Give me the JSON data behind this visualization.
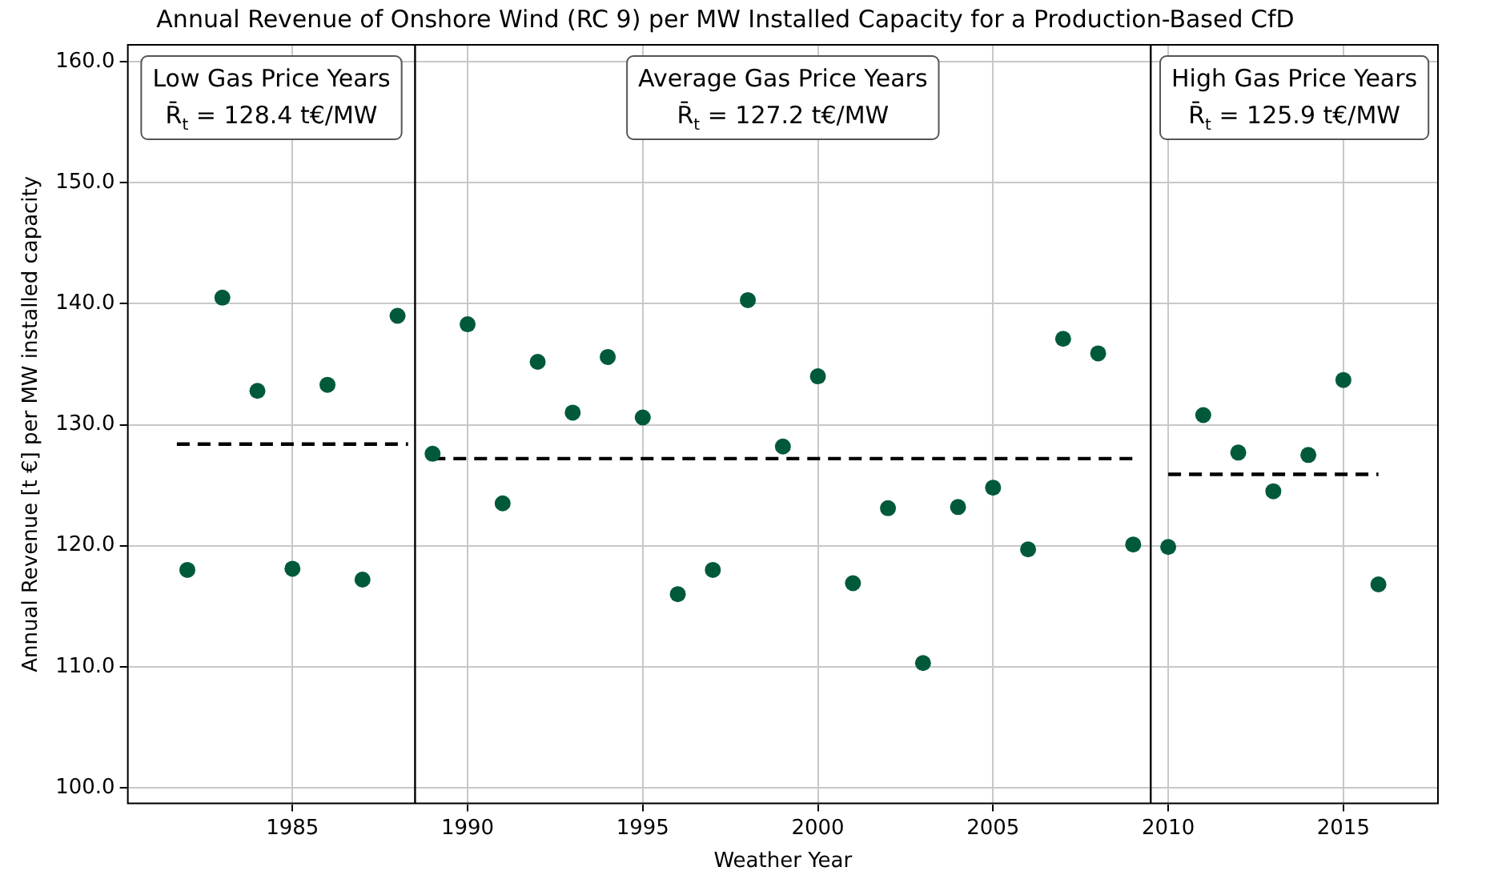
{
  "chart_data": {
    "type": "scatter",
    "title": "Annual Revenue of Onshore Wind (RC 9) per MW Installed Capacity for a Production-Based CfD",
    "xlabel": "Weather Year",
    "ylabel": "Annual Revenue [t €] per MW installed capacity",
    "xlim": [
      1980.3,
      2017.7
    ],
    "xticks": [
      1985,
      1990,
      1995,
      2000,
      2005,
      2010,
      2015
    ],
    "ylim": [
      98.7,
      161.4
    ],
    "yticks": [
      {
        "value": 100,
        "label": "100.0"
      },
      {
        "value": 110,
        "label": "110.0"
      },
      {
        "value": 120,
        "label": "120.0"
      },
      {
        "value": 130,
        "label": "130.0"
      },
      {
        "value": 140,
        "label": "140.0"
      },
      {
        "value": 150,
        "label": "150.0"
      },
      {
        "value": 160,
        "label": "160.0"
      }
    ],
    "grid": true,
    "marker": "circle",
    "series": [
      {
        "type": "scatter",
        "color": "#005a3a",
        "x": [
          1982,
          1983,
          1984,
          1985,
          1986,
          1987,
          1988,
          1989,
          1990,
          1991,
          1992,
          1993,
          1994,
          1995,
          1996,
          1997,
          1998,
          1999,
          2000,
          2001,
          2002,
          2003,
          2004,
          2005,
          2006,
          2007,
          2008,
          2009,
          2010,
          2011,
          2012,
          2013,
          2014,
          2015,
          2016
        ],
        "values": [
          118.0,
          140.5,
          132.8,
          118.1,
          133.3,
          117.2,
          139.0,
          127.6,
          138.3,
          123.5,
          135.2,
          131.0,
          135.6,
          130.6,
          116.0,
          118.0,
          140.3,
          128.2,
          134.0,
          116.9,
          123.1,
          110.3,
          123.2,
          124.8,
          119.7,
          137.1,
          135.9,
          120.1,
          119.9,
          130.8,
          127.7,
          124.5,
          127.5,
          133.7,
          116.8
        ]
      },
      {
        "type": "line",
        "color": "#000000",
        "line_style": "dashed",
        "marker": "none",
        "x": [
          1981.7,
          1988.3
        ],
        "values": [
          128.4,
          128.4
        ]
      },
      {
        "type": "line",
        "color": "#000000",
        "line_style": "dashed",
        "marker": "none",
        "x": [
          1989,
          2009
        ],
        "values": [
          127.2,
          127.2
        ]
      },
      {
        "type": "line",
        "color": "#000000",
        "line_style": "dashed",
        "marker": "none",
        "x": [
          2010,
          2016
        ],
        "values": [
          125.9,
          125.9
        ]
      }
    ],
    "ref_lines": [
      {
        "axis": "x",
        "value": 1988.5,
        "color": "#000000"
      },
      {
        "axis": "x",
        "value": 2009.5,
        "color": "#000000"
      }
    ],
    "annotations": [
      "Low Gas Price Years\nR̄$_{t}$ = 128.4 t€/MW",
      "Average Gas Price Years\nR̄$_{t}$ = 127.2 t€/MW",
      "High Gas Price Years\nR̄$_{t}$ = 125.9 t€/MW"
    ]
  }
}
